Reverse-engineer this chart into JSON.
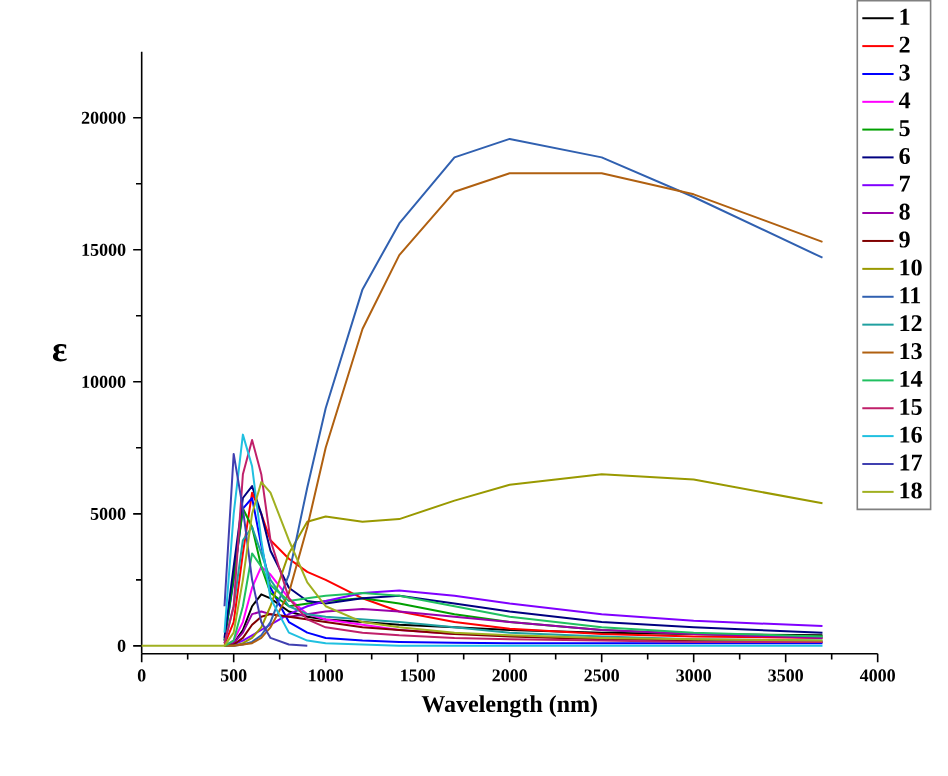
{
  "chart_data": {
    "type": "line",
    "xlabel": "Wavelength (nm)",
    "ylabel": "ε",
    "xlim": [
      0,
      4000
    ],
    "xticks": [
      0,
      500,
      1000,
      1500,
      2000,
      2500,
      3000,
      3500,
      4000
    ],
    "ylim": [
      -300,
      22500
    ],
    "yticks": [
      0,
      5000,
      10000,
      15000,
      20000
    ],
    "grid": false,
    "legend": "top right",
    "marker": "none",
    "line_style": "solid",
    "x": [
      0,
      400,
      450,
      500,
      550,
      600,
      650,
      700,
      800,
      900,
      1000,
      1200,
      1400,
      1700,
      2000,
      2500,
      3000,
      3700
    ],
    "series": [
      {
        "name": "1",
        "color": "#000000",
        "values": [
          null,
          null,
          0,
          100,
          600,
          1500,
          1950,
          1800,
          1300,
          1100,
          1000,
          900,
          800,
          700,
          600,
          500,
          450,
          400
        ]
      },
      {
        "name": "2",
        "color": "#ff0000",
        "values": [
          null,
          null,
          50,
          900,
          3500,
          5800,
          5000,
          4000,
          3300,
          2800,
          2500,
          1800,
          1300,
          900,
          650,
          450,
          350,
          300
        ]
      },
      {
        "name": "3",
        "color": "#0000ff",
        "values": [
          null,
          null,
          200,
          2500,
          5200,
          5600,
          3800,
          2200,
          900,
          500,
          300,
          200,
          150,
          120,
          100,
          100,
          100,
          100
        ]
      },
      {
        "name": "4",
        "color": "#ff00ff",
        "values": [
          null,
          null,
          0,
          200,
          900,
          2200,
          3000,
          2700,
          1800,
          1200,
          1000,
          800,
          600,
          450,
          null,
          null,
          null,
          null
        ]
      },
      {
        "name": "5",
        "color": "#00a000",
        "values": [
          null,
          null,
          200,
          2600,
          5200,
          4500,
          3000,
          2000,
          1500,
          1600,
          1700,
          1800,
          1600,
          1200,
          900,
          600,
          450,
          350
        ]
      },
      {
        "name": "6",
        "color": "#000080",
        "values": [
          null,
          null,
          300,
          3000,
          5600,
          6050,
          5000,
          3600,
          2200,
          1700,
          1600,
          1800,
          1900,
          1600,
          1300,
          900,
          700,
          500
        ]
      },
      {
        "name": "7",
        "color": "#8000ff",
        "values": [
          null,
          null,
          0,
          50,
          200,
          400,
          600,
          800,
          1200,
          1500,
          1700,
          2000,
          2100,
          1900,
          1600,
          1200,
          950,
          750
        ]
      },
      {
        "name": "8",
        "color": "#9900aa",
        "values": [
          null,
          null,
          0,
          100,
          500,
          1200,
          1300,
          1200,
          1100,
          1200,
          1300,
          1400,
          1300,
          1100,
          900,
          600,
          450,
          300
        ]
      },
      {
        "name": "9",
        "color": "#800000",
        "values": [
          null,
          null,
          0,
          50,
          300,
          800,
          1100,
          1200,
          1100,
          1000,
          900,
          700,
          600,
          450,
          350,
          250,
          200,
          150
        ]
      },
      {
        "name": "10",
        "color": "#999900",
        "values": [
          null,
          null,
          0,
          0,
          100,
          300,
          700,
          1500,
          3500,
          4700,
          4900,
          4700,
          4800,
          5500,
          6100,
          6500,
          6300,
          5400
        ]
      },
      {
        "name": "11",
        "color": "#3060b0",
        "values": [
          null,
          null,
          0,
          0,
          50,
          150,
          400,
          900,
          2700,
          6000,
          9000,
          13500,
          16000,
          18500,
          19200,
          18500,
          17000,
          14700
        ]
      },
      {
        "name": "12",
        "color": "#20a0a0",
        "values": [
          null,
          null,
          100,
          1500,
          4000,
          4500,
          3500,
          2500,
          1500,
          1200,
          1100,
          1000,
          900,
          700,
          500,
          350,
          250,
          200
        ]
      },
      {
        "name": "13",
        "color": "#b06010",
        "values": [
          null,
          null,
          0,
          0,
          50,
          100,
          300,
          700,
          2000,
          4500,
          7500,
          12000,
          14800,
          17200,
          17900,
          17900,
          17100,
          15300
        ]
      },
      {
        "name": "14",
        "color": "#20c060",
        "values": [
          null,
          null,
          0,
          200,
          1500,
          3500,
          3000,
          2300,
          1700,
          1800,
          1900,
          2000,
          1900,
          1500,
          1100,
          700,
          500,
          350
        ]
      },
      {
        "name": "15",
        "color": "#c0206a",
        "values": [
          null,
          null,
          100,
          1500,
          6500,
          7800,
          6500,
          4000,
          1800,
          1000,
          700,
          500,
          400,
          300,
          250,
          200,
          150,
          150
        ]
      },
      {
        "name": "16",
        "color": "#20c0e0",
        "values": [
          null,
          null,
          500,
          5000,
          8000,
          6800,
          4000,
          1800,
          500,
          200,
          100,
          50,
          0,
          0,
          0,
          0,
          0,
          0
        ]
      },
      {
        "name": "17",
        "color": "#4040b0",
        "values": [
          null,
          null,
          1500,
          7270,
          5200,
          2500,
          900,
          300,
          50,
          0,
          null,
          null,
          null,
          null,
          null,
          null,
          null,
          null
        ]
      },
      {
        "name": "18",
        "color": "#a0b020",
        "values": [
          0,
          0,
          0,
          500,
          2500,
          5000,
          6200,
          5800,
          4000,
          2400,
          1500,
          900,
          700,
          500,
          400,
          300,
          250,
          200
        ]
      }
    ]
  }
}
